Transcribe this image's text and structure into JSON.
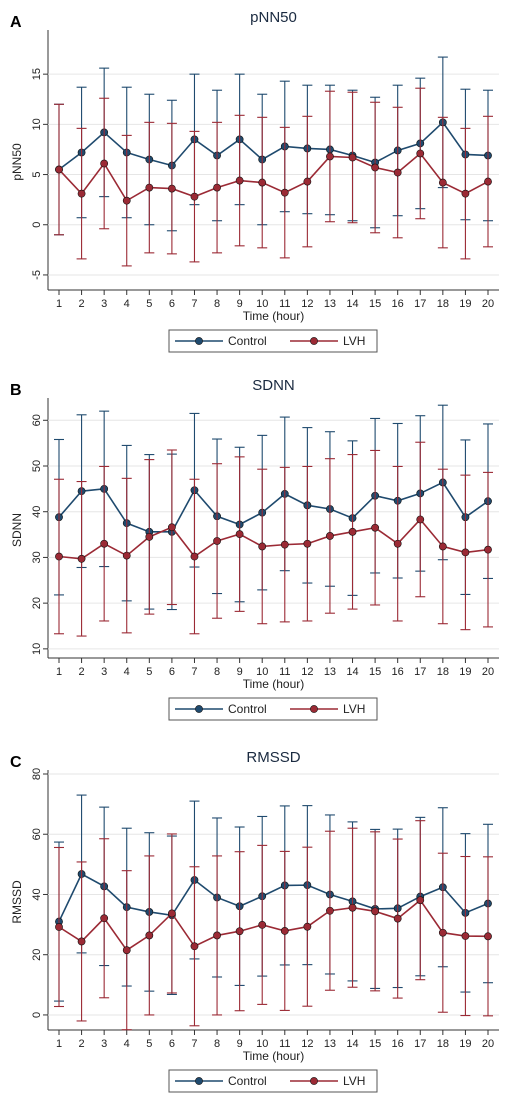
{
  "chart_data": [
    {
      "panel": "A",
      "type": "line",
      "title": "pNN50",
      "xlabel": "Time (hour)",
      "ylabel": "pNN50",
      "x": [
        1,
        2,
        3,
        4,
        5,
        6,
        7,
        8,
        9,
        10,
        11,
        12,
        13,
        14,
        15,
        16,
        17,
        18,
        19,
        20
      ],
      "ylim": [
        -6.5,
        19
      ],
      "yticks": [
        -5,
        0,
        5,
        10,
        15
      ],
      "ytick_labels": [
        "-5",
        "0",
        "5",
        "10",
        "15"
      ],
      "series": [
        {
          "name": "Control",
          "color": "#1f4a6e",
          "values": [
            5.5,
            7.2,
            9.2,
            7.2,
            6.5,
            5.9,
            8.5,
            6.9,
            8.5,
            6.5,
            7.8,
            7.6,
            7.5,
            6.9,
            6.2,
            7.4,
            8.1,
            10.2,
            7.0,
            6.9
          ],
          "upper": [
            12.0,
            13.7,
            15.6,
            13.7,
            13.0,
            12.4,
            15.0,
            13.4,
            15.0,
            13.0,
            14.3,
            13.9,
            13.9,
            13.4,
            12.7,
            13.9,
            14.6,
            16.7,
            13.5,
            13.4
          ],
          "lower": [
            -1.0,
            0.7,
            2.8,
            0.7,
            0.0,
            -0.6,
            2.0,
            0.4,
            2.0,
            0.0,
            1.3,
            1.1,
            1.0,
            0.4,
            -0.3,
            0.9,
            1.6,
            3.7,
            0.5,
            0.4
          ]
        },
        {
          "name": "LVH",
          "color": "#9b2a35",
          "values": [
            5.5,
            3.1,
            6.1,
            2.4,
            3.7,
            3.6,
            2.8,
            3.7,
            4.4,
            4.2,
            3.2,
            4.3,
            6.8,
            6.7,
            5.7,
            5.2,
            7.1,
            4.2,
            3.1,
            4.3
          ],
          "upper": [
            12.0,
            9.6,
            12.6,
            8.9,
            10.2,
            10.1,
            9.3,
            10.2,
            10.9,
            10.7,
            9.7,
            10.8,
            13.3,
            13.2,
            12.2,
            11.7,
            13.6,
            10.7,
            9.6,
            10.8
          ],
          "lower": [
            -1.0,
            -3.4,
            -0.4,
            -4.1,
            -2.8,
            -2.9,
            -3.7,
            -2.8,
            -2.1,
            -2.3,
            -3.3,
            -2.2,
            0.3,
            0.2,
            -0.8,
            -1.3,
            0.6,
            -2.3,
            -3.4,
            -2.2
          ]
        }
      ]
    },
    {
      "panel": "B",
      "type": "line",
      "title": "SDNN",
      "xlabel": "Time (hour)",
      "ylabel": "SDNN",
      "x": [
        1,
        2,
        3,
        4,
        5,
        6,
        7,
        8,
        9,
        10,
        11,
        12,
        13,
        14,
        15,
        16,
        17,
        18,
        19,
        20
      ],
      "ylim": [
        8,
        64
      ],
      "yticks": [
        10,
        20,
        30,
        40,
        50,
        60
      ],
      "ytick_labels": [
        "10",
        "20",
        "30",
        "40",
        "50",
        "60"
      ],
      "series": [
        {
          "name": "Control",
          "color": "#1f4a6e",
          "values": [
            38.8,
            44.5,
            45.0,
            37.5,
            35.6,
            35.6,
            44.7,
            39.0,
            37.2,
            39.8,
            43.9,
            41.4,
            40.6,
            38.6,
            43.5,
            42.4,
            44.0,
            46.4,
            38.8,
            42.3
          ],
          "upper": [
            55.8,
            61.2,
            62.0,
            54.5,
            52.5,
            52.6,
            61.5,
            55.9,
            54.1,
            56.7,
            60.7,
            58.4,
            57.5,
            55.5,
            60.4,
            59.3,
            61.0,
            63.3,
            55.7,
            59.2
          ],
          "lower": [
            21.8,
            27.8,
            28.0,
            20.5,
            18.7,
            18.6,
            27.9,
            22.1,
            20.3,
            22.9,
            27.1,
            24.4,
            23.7,
            21.7,
            26.6,
            25.5,
            27.0,
            29.5,
            21.9,
            25.4
          ]
        },
        {
          "name": "LVH",
          "color": "#9b2a35",
          "values": [
            30.2,
            29.7,
            33.0,
            30.4,
            34.5,
            36.6,
            30.2,
            33.6,
            35.1,
            32.4,
            32.8,
            33.0,
            34.7,
            35.6,
            36.5,
            33.0,
            38.3,
            32.4,
            31.1,
            31.7
          ],
          "upper": [
            47.1,
            46.6,
            49.9,
            47.3,
            51.4,
            53.5,
            47.1,
            50.5,
            52.0,
            49.3,
            49.7,
            49.9,
            51.6,
            52.5,
            53.4,
            49.9,
            55.2,
            49.3,
            48.0,
            48.6
          ],
          "lower": [
            13.3,
            12.8,
            16.1,
            13.5,
            17.6,
            19.7,
            13.3,
            16.7,
            18.2,
            15.5,
            15.9,
            16.1,
            17.8,
            18.7,
            19.6,
            16.1,
            21.4,
            15.5,
            14.2,
            14.8
          ]
        }
      ]
    },
    {
      "panel": "C",
      "type": "line",
      "title": "RMSSD",
      "xlabel": "Time (hour)",
      "ylabel": "RMSSD",
      "x": [
        1,
        2,
        3,
        4,
        5,
        6,
        7,
        8,
        9,
        10,
        11,
        12,
        13,
        14,
        15,
        16,
        17,
        18,
        19,
        20
      ],
      "ylim": [
        -5,
        80
      ],
      "yticks": [
        0,
        20,
        40,
        60,
        80
      ],
      "ytick_labels": [
        "0",
        "20",
        "40",
        "60",
        "80"
      ],
      "series": [
        {
          "name": "Control",
          "color": "#1f4a6e",
          "values": [
            31.0,
            46.8,
            42.7,
            35.8,
            34.2,
            33.1,
            44.8,
            39.0,
            36.1,
            39.4,
            43.0,
            43.1,
            40.0,
            37.7,
            35.2,
            35.4,
            39.3,
            42.4,
            33.9,
            37.0
          ],
          "upper": [
            57.4,
            73.0,
            69.0,
            62.0,
            60.5,
            59.4,
            71.0,
            65.4,
            62.4,
            65.9,
            69.4,
            69.5,
            66.4,
            64.1,
            61.6,
            61.7,
            65.6,
            68.8,
            60.2,
            63.3
          ],
          "lower": [
            4.6,
            20.6,
            16.4,
            9.6,
            7.9,
            6.8,
            18.6,
            12.6,
            9.8,
            12.9,
            16.6,
            16.7,
            13.6,
            11.3,
            8.8,
            9.1,
            13.0,
            16.0,
            7.6,
            10.7
          ]
        },
        {
          "name": "LVH",
          "color": "#9b2a35",
          "values": [
            29.2,
            24.4,
            32.1,
            21.5,
            26.4,
            33.7,
            22.8,
            26.4,
            27.8,
            29.9,
            27.9,
            29.3,
            34.6,
            35.6,
            34.4,
            32.0,
            38.1,
            27.3,
            26.2,
            26.1
          ],
          "upper": [
            55.6,
            50.8,
            58.5,
            47.9,
            52.8,
            60.1,
            49.2,
            52.8,
            54.2,
            56.3,
            54.3,
            55.7,
            61.0,
            62.0,
            60.8,
            58.4,
            64.5,
            53.7,
            52.6,
            52.5
          ],
          "lower": [
            2.8,
            -2.0,
            5.7,
            -4.9,
            0.0,
            7.3,
            -3.6,
            0.0,
            1.4,
            3.5,
            1.5,
            2.9,
            8.2,
            9.2,
            8.0,
            5.6,
            11.7,
            0.9,
            -0.2,
            -0.3
          ]
        }
      ]
    }
  ]
}
